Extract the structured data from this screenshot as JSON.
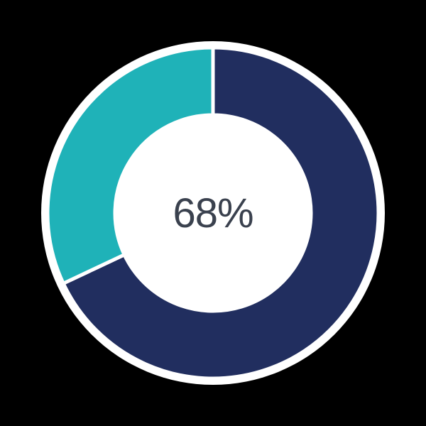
{
  "page": {
    "background_color": "#000000"
  },
  "chart_data": {
    "type": "pie",
    "subtype": "donut",
    "title": "",
    "center_label": "68%",
    "center_label_color": "#3A414E",
    "background_circle_color": "#FFFFFF",
    "separator_color": "#FFFFFF",
    "start_angle_deg": -90,
    "direction": "clockwise",
    "legend": "none",
    "slices": [
      {
        "name": "value",
        "value": 68,
        "color": "#212E5F"
      },
      {
        "name": "remainder",
        "value": 32,
        "color": "#1FB2B8"
      }
    ]
  }
}
